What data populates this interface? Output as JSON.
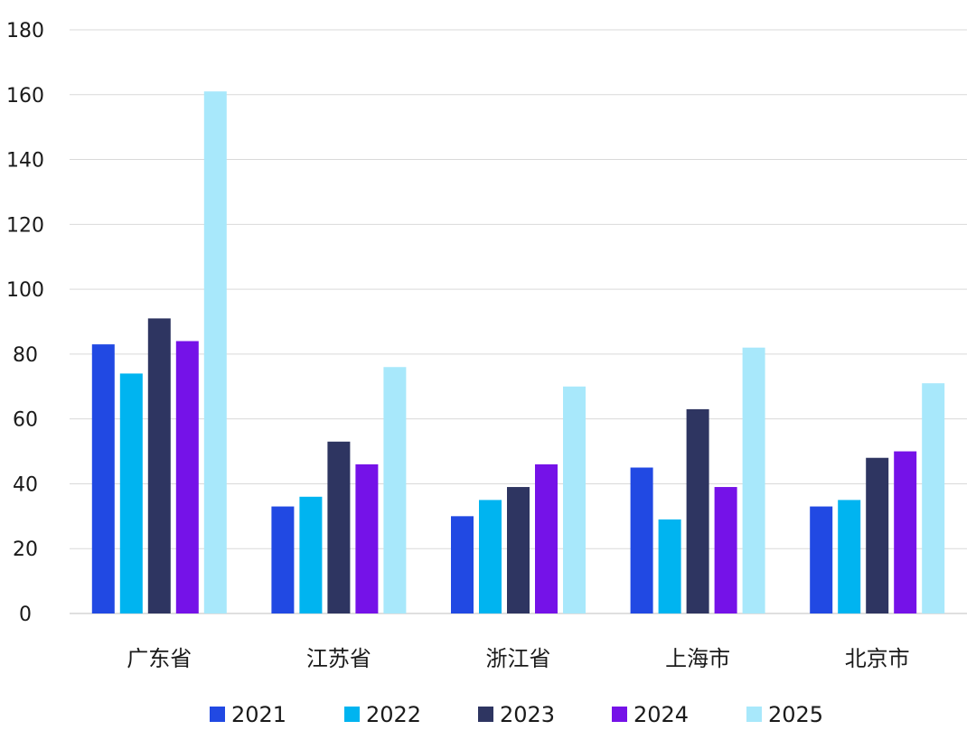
{
  "chart_data": {
    "type": "bar",
    "title": "",
    "xlabel": "",
    "ylabel": "",
    "ylim": [
      0,
      180
    ],
    "yticks": [
      0,
      20,
      40,
      60,
      80,
      100,
      120,
      140,
      160,
      180
    ],
    "grid": true,
    "legend_position": "bottom",
    "categories": [
      "广东省",
      "江苏省",
      "浙江省",
      "上海市",
      "北京市"
    ],
    "series": [
      {
        "name": "2021",
        "color": "#2149e3",
        "values": [
          83,
          33,
          30,
          45,
          33
        ]
      },
      {
        "name": "2022",
        "color": "#00b4f0",
        "values": [
          74,
          36,
          35,
          29,
          35
        ]
      },
      {
        "name": "2023",
        "color": "#2e3561",
        "values": [
          91,
          53,
          39,
          63,
          48
        ]
      },
      {
        "name": "2024",
        "color": "#7512e8",
        "values": [
          84,
          46,
          46,
          39,
          50
        ]
      },
      {
        "name": "2025",
        "color": "#a8e8fb",
        "values": [
          161,
          76,
          70,
          82,
          71
        ]
      }
    ]
  }
}
